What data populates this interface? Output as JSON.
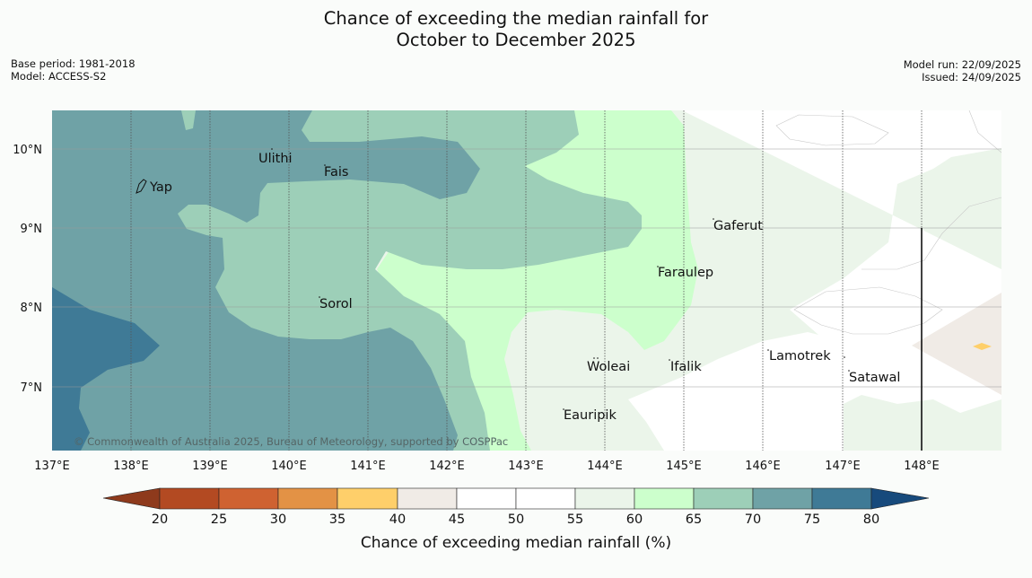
{
  "title": {
    "line1": "Chance of exceeding the median rainfall for",
    "line2": "October to December 2025"
  },
  "meta": {
    "base_period": "Base period: 1981-2018",
    "model": "Model: ACCESS-S2",
    "model_run": "Model run: 22/09/2025",
    "issued": "Issued: 24/09/2025"
  },
  "map": {
    "lon_labels": [
      "137°E",
      "138°E",
      "139°E",
      "140°E",
      "141°E",
      "142°E",
      "143°E",
      "144°E",
      "145°E",
      "146°E",
      "147°E",
      "148°E"
    ],
    "lat_labels": [
      "10°N",
      "9°N",
      "8°N",
      "7°N"
    ],
    "places": [
      {
        "name": "Yap"
      },
      {
        "name": "Ulithi"
      },
      {
        "name": "Fais"
      },
      {
        "name": "Gaferut"
      },
      {
        "name": "Faraulep"
      },
      {
        "name": "Sorol"
      },
      {
        "name": "Lamotrek"
      },
      {
        "name": "Woleai"
      },
      {
        "name": "Ifalik"
      },
      {
        "name": "Satawal"
      },
      {
        "name": "Eauripik"
      }
    ],
    "copyright": "© Commonwealth of Australia 2025, Bureau of Meteorology, supported by COSPPac"
  },
  "colorbar": {
    "tick_labels": [
      "20",
      "25",
      "30",
      "35",
      "40",
      "45",
      "50",
      "55",
      "60",
      "65",
      "70",
      "75",
      "80"
    ],
    "label": "Chance of exceeding median rainfall (%)",
    "colors": {
      "below20": "#8e3a1c",
      "c20_25": "#b34a22",
      "c25_30": "#cf6231",
      "c30_35": "#e39245",
      "c35_40": "#fecf6a",
      "c40_45": "#f0ebe6",
      "c45_50": "#ffffff",
      "c50_55": "#ffffff",
      "c55_60": "#ebf5ea",
      "c60_65": "#ccffcc",
      "c65_70": "#9dcfb8",
      "c70_75": "#6fa2a6",
      "c75_80": "#3f7a96",
      "above80": "#174a7c"
    }
  }
}
